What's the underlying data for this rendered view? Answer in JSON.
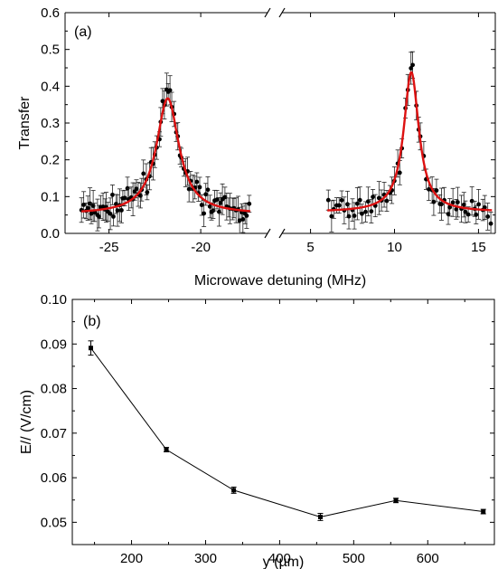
{
  "chart_data": [
    {
      "type": "scatter",
      "panel_label": "(a)",
      "xlabel": "Microwave detuning (MHz)",
      "ylabel": "Transfer",
      "ylim": [
        0.0,
        0.6
      ],
      "y_ticks": [
        "0.0",
        "0.1",
        "0.2",
        "0.3",
        "0.4",
        "0.5",
        "0.6"
      ],
      "broken_x_axis": true,
      "segments": [
        {
          "xlim": [
            -27,
            -17
          ],
          "x_ticks": [
            -25,
            -20
          ],
          "x_tick_labels": [
            "-25",
            "-20"
          ]
        },
        {
          "xlim": [
            4,
            16
          ],
          "x_ticks": [
            5,
            10,
            15
          ],
          "x_tick_labels": [
            "5",
            "10",
            "15"
          ]
        }
      ],
      "marker_color": "#000000",
      "fit_color": "#dd1111",
      "fits": [
        {
          "center": -21.8,
          "width": 0.75,
          "amplitude": 0.315,
          "offset": 0.052,
          "xrange": [
            -26.5,
            -17.3
          ]
        },
        {
          "center": 11.0,
          "width": 0.55,
          "amplitude": 0.38,
          "offset": 0.058,
          "xrange": [
            6.0,
            15.8
          ]
        }
      ],
      "grid": false,
      "legend": "none"
    },
    {
      "type": "line",
      "panel_label": "(b)",
      "xlabel": "y (µm)",
      "ylabel": "E// (V/cm)",
      "xlim": [
        120,
        690
      ],
      "ylim": [
        0.045,
        0.1
      ],
      "x_ticks": [
        200,
        300,
        400,
        500,
        600
      ],
      "x_tick_labels": [
        "200",
        "300",
        "400",
        "500",
        "600"
      ],
      "y_ticks": [
        "0.05",
        "0.06",
        "0.07",
        "0.08",
        "0.09",
        "0.10"
      ],
      "x": [
        145,
        247,
        338,
        455,
        557,
        675
      ],
      "y": [
        0.0891,
        0.0663,
        0.0572,
        0.0512,
        0.0549,
        0.0524
      ],
      "err": [
        0.0016,
        0.0005,
        0.0007,
        0.0008,
        0.0005,
        0.0005
      ],
      "marker_color": "#000000",
      "grid": false,
      "legend": "none"
    }
  ]
}
